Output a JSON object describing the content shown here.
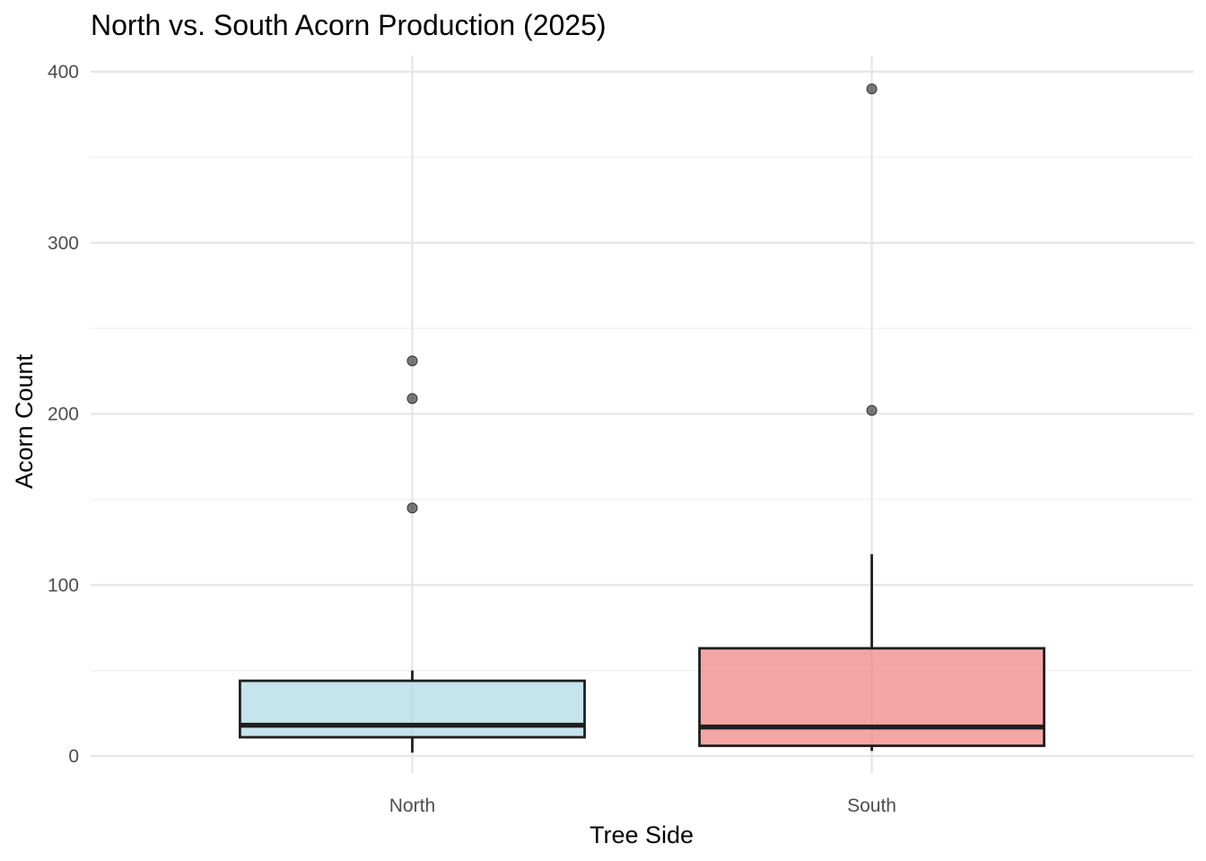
{
  "chart_data": {
    "type": "box",
    "title": "North vs. South Acorn Production (2025)",
    "xlabel": "Tree Side",
    "ylabel": "Acorn Count",
    "categories": [
      "North",
      "South"
    ],
    "ylim": [
      -14,
      410
    ],
    "yticks": [
      0,
      100,
      200,
      300,
      400
    ],
    "grid": true,
    "legend": "none",
    "boxes": [
      {
        "category": "North",
        "color": "#add8e6",
        "whisker_low": 2,
        "q1": 11,
        "median": 18,
        "q3": 44,
        "whisker_high": 50,
        "outliers": [
          145,
          209,
          231
        ]
      },
      {
        "category": "South",
        "color": "#f08080",
        "whisker_low": 3,
        "q1": 6,
        "median": 17,
        "q3": 63,
        "whisker_high": 118,
        "outliers": [
          202,
          390
        ]
      }
    ]
  }
}
